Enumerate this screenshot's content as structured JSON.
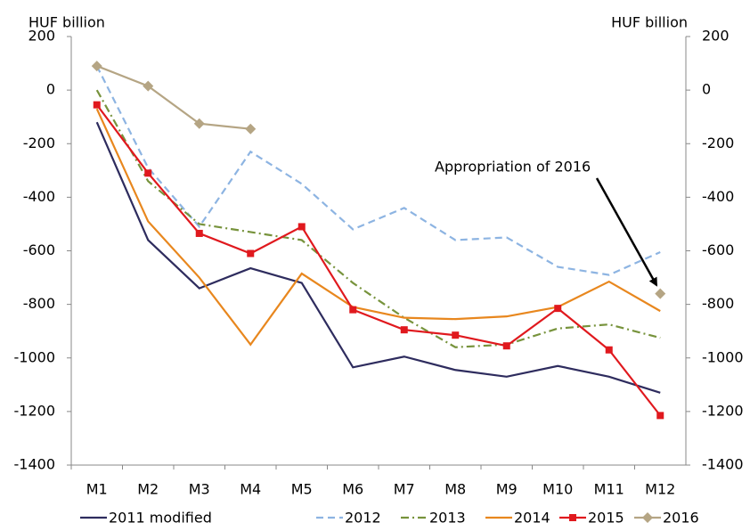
{
  "chart_data": {
    "type": "line",
    "y_label": "HUF billion",
    "y2_label": "HUF billion",
    "annotation": "Appropriation of 2016",
    "categories": [
      "M1",
      "M2",
      "M3",
      "M4",
      "M5",
      "M6",
      "M7",
      "M8",
      "M9",
      "M10",
      "M11",
      "M12"
    ],
    "ylim": [
      -1400,
      200
    ],
    "yticks": [
      -1400,
      -1200,
      -1000,
      -800,
      -600,
      -400,
      -200,
      0,
      200
    ],
    "y2lim": [
      -1400,
      200
    ],
    "y2ticks": [
      -1400,
      -1200,
      -1000,
      -800,
      -600,
      -400,
      -200,
      0,
      200
    ],
    "grid": false,
    "legend": "bottom",
    "series": [
      {
        "name": "2011 modified",
        "color": "#2e2c5e",
        "dash": "solid",
        "values": [
          -120,
          -560,
          -740,
          -665,
          -720,
          -1035,
          -995,
          -1045,
          -1070,
          -1030,
          -1070,
          -1130
        ]
      },
      {
        "name": "2012",
        "color": "#8db4e2",
        "dash": "dashed",
        "values": [
          90,
          -290,
          -510,
          -230,
          -350,
          -520,
          -440,
          -560,
          -550,
          -660,
          -690,
          -605
        ]
      },
      {
        "name": "2013",
        "color": "#77933c",
        "dash": "dashdot",
        "values": [
          0,
          -340,
          -500,
          -530,
          -560,
          -720,
          -850,
          -960,
          -950,
          -890,
          -875,
          -925
        ]
      },
      {
        "name": "2014",
        "color": "#e8871e",
        "dash": "solid",
        "values": [
          -70,
          -490,
          -700,
          -950,
          -685,
          -810,
          -850,
          -855,
          -845,
          -810,
          -715,
          -825
        ]
      },
      {
        "name": "2015",
        "color": "#e0191e",
        "dash": "solid",
        "marker": "square",
        "values": [
          -55,
          -310,
          -535,
          -610,
          -510,
          -820,
          -895,
          -915,
          -955,
          -815,
          -970,
          -1215
        ]
      },
      {
        "name": "2016",
        "color": "#b5a584",
        "dash": "solid",
        "marker": "diamond",
        "values": [
          90,
          15,
          -125,
          -145,
          null,
          null,
          null,
          null,
          null,
          null,
          null,
          -760
        ]
      }
    ]
  }
}
